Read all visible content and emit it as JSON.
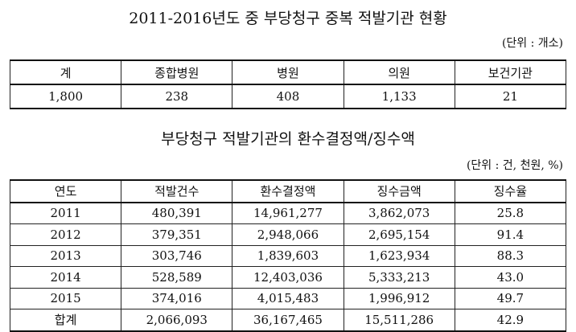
{
  "title1": "2011-2016년도 중 부당청구 중복 적발기관 현황",
  "unit1": "(단위 : 개소)",
  "table1": {
    "headers": [
      "계",
      "종합병원",
      "병원",
      "의원",
      "보건기관"
    ],
    "values": [
      "1,800",
      "238",
      "408",
      "1,133",
      "21"
    ]
  },
  "title2": "부당청구 적발기관의 환수결정액/징수액",
  "unit2": "(단위 : 건, 천원, %)",
  "table2": {
    "headers": [
      "연도",
      "적발건수",
      "환수결정액",
      "징수금액",
      "징수율"
    ],
    "rows": [
      [
        "2011",
        "480,391",
        "14,961,277",
        "3,862,073",
        "25.8"
      ],
      [
        "2012",
        "379,351",
        "2,948,066",
        "2,695,154",
        "91.4"
      ],
      [
        "2013",
        "303,746",
        "1,839,603",
        "1,623,934",
        "88.3"
      ],
      [
        "2014",
        "528,589",
        "12,403,036",
        "5,333,213",
        "43.0"
      ],
      [
        "2015",
        "374,016",
        "4,015,483",
        "1,996,912",
        "49.7"
      ],
      [
        "합계",
        "2,066,093",
        "36,167,465",
        "15,511,286",
        "42.9"
      ]
    ]
  }
}
